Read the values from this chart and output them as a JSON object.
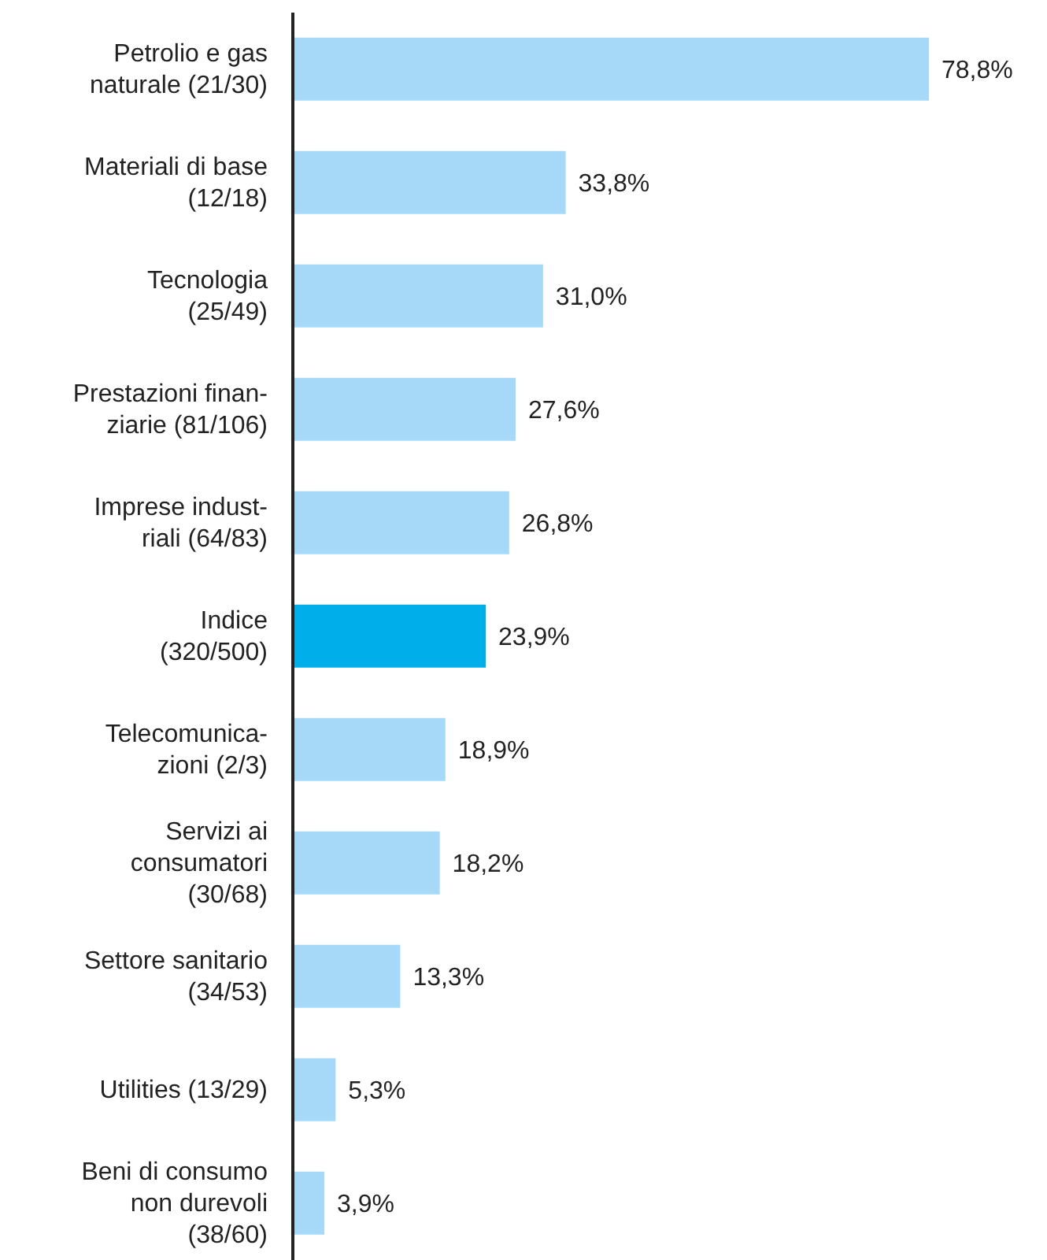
{
  "chart_data": {
    "type": "bar",
    "orientation": "horizontal",
    "categories": [
      "Petrolio e gas\nnaturale (21/30)",
      "Materiali di base\n(12/18)",
      "Tecnologia\n(25/49)",
      "Prestazioni finan-\nziarie (81/106)",
      "Imprese indust-\nriali (64/83)",
      "Indice\n(320/500)",
      "Telecomunica-\nzioni (2/3)",
      "Servizi ai\nconsumatori\n(30/68)",
      "Settore sanitario\n(34/53)",
      "Utilities (13/29)",
      "Beni di consumo\nnon durevoli\n(38/60)"
    ],
    "values": [
      78.8,
      33.8,
      31.0,
      27.6,
      26.8,
      23.9,
      18.9,
      18.2,
      13.3,
      5.3,
      3.9
    ],
    "value_labels": [
      "78,8%",
      "33,8%",
      "31,0%",
      "27,6%",
      "26,8%",
      "23,9%",
      "18,9%",
      "18,2%",
      "13,3%",
      "5,3%",
      "3,9%"
    ],
    "colors": [
      "#a6d9f7",
      "#a6d9f7",
      "#a6d9f7",
      "#a6d9f7",
      "#a6d9f7",
      "#00aeea",
      "#a6d9f7",
      "#a6d9f7",
      "#a6d9f7",
      "#a6d9f7",
      "#a6d9f7"
    ]
  }
}
